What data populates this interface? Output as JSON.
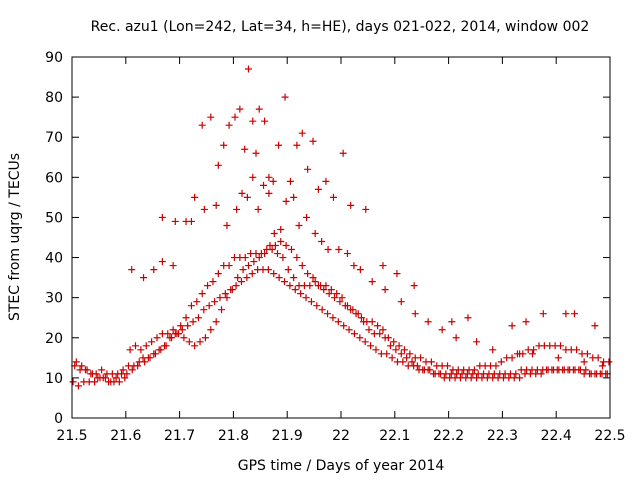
{
  "chart_data": {
    "type": "scatter",
    "title": "Rec. azu1 (Lon=242, Lat=34, h=HE), days 021-022, 2014, window 002",
    "xlabel": "GPS time / Days of year 2014",
    "ylabel": "STEC from uqrg / TECUs",
    "xlim": [
      21.5,
      22.5
    ],
    "ylim": [
      0,
      90
    ],
    "xticks": [
      "21.5",
      "21.6",
      "21.7",
      "21.8",
      "21.9",
      "22",
      "22.1",
      "22.2",
      "22.3",
      "22.4",
      "22.5"
    ],
    "yticks": [
      "0",
      "10",
      "20",
      "30",
      "40",
      "50",
      "60",
      "70",
      "80",
      "90"
    ],
    "grid": false,
    "marker": "plus",
    "color": "#cc0000",
    "x": [
      21.502,
      21.512,
      21.522,
      21.532,
      21.542,
      21.552,
      21.562,
      21.572,
      21.582,
      21.592,
      21.602,
      21.612,
      21.622,
      21.632,
      21.642,
      21.652,
      21.662,
      21.672,
      21.682,
      21.692,
      21.702,
      21.712,
      21.722,
      21.732,
      21.742,
      21.752,
      21.762,
      21.772,
      21.782,
      21.792,
      21.802,
      21.812,
      21.822,
      21.832,
      21.842,
      21.852,
      21.862,
      21.872,
      21.882,
      21.892,
      21.902,
      21.912,
      21.922,
      21.932,
      21.942,
      21.952,
      21.962,
      21.972,
      21.982,
      21.992,
      22.002,
      22.012,
      22.022,
      22.032,
      22.042,
      22.052,
      22.062,
      22.072,
      22.082,
      22.092,
      22.102,
      22.112,
      22.122,
      22.132,
      22.142,
      22.152,
      22.162,
      22.172,
      22.182,
      22.192,
      22.202,
      22.212,
      22.222,
      22.232,
      22.242,
      22.252,
      22.262,
      22.272,
      22.282,
      22.292,
      22.302,
      22.312,
      22.322,
      22.332,
      22.342,
      22.352,
      22.362,
      22.372,
      22.382,
      22.392,
      22.402,
      22.412,
      22.422,
      22.432,
      22.442,
      22.452,
      22.462,
      22.472,
      22.482,
      22.492,
      21.505,
      21.515,
      21.525,
      21.535,
      21.545,
      21.555,
      21.565,
      21.575,
      21.585,
      21.595,
      21.605,
      21.615,
      21.625,
      21.635,
      21.645,
      21.655,
      21.665,
      21.675,
      21.685,
      21.695,
      21.705,
      21.715,
      21.725,
      21.735,
      21.745,
      21.755,
      21.765,
      21.775,
      21.785,
      21.795,
      21.805,
      21.815,
      21.825,
      21.835,
      21.845,
      21.855,
      21.865,
      21.875,
      21.885,
      21.895,
      21.905,
      21.915,
      21.925,
      21.935,
      21.945,
      21.955,
      21.965,
      21.975,
      21.985,
      21.995,
      22.005,
      22.015,
      22.025,
      22.035,
      22.045,
      22.055,
      22.065,
      22.075,
      22.085,
      22.095,
      22.105,
      22.115,
      22.125,
      22.135,
      22.145,
      22.155,
      22.165,
      22.175,
      22.185,
      22.195,
      22.205,
      22.215,
      22.225,
      22.235,
      22.245,
      22.255,
      22.265,
      22.275,
      22.285,
      22.295,
      22.305,
      22.315,
      22.325,
      22.335,
      22.345,
      22.355,
      22.365,
      22.375,
      22.385,
      22.395,
      22.405,
      22.415,
      22.425,
      22.435,
      22.445,
      22.455,
      22.465,
      22.475,
      22.485,
      22.495,
      21.508,
      21.518,
      21.528,
      21.538,
      21.548,
      21.558,
      21.568,
      21.578,
      21.588,
      21.598,
      21.608,
      21.618,
      21.628,
      21.638,
      21.648,
      21.658,
      21.668,
      21.678,
      21.688,
      21.698,
      21.708,
      21.718,
      21.728,
      21.738,
      21.748,
      21.758,
      21.768,
      21.778,
      21.788,
      21.798,
      21.808,
      21.818,
      21.828,
      21.838,
      21.848,
      21.858,
      21.868,
      21.878,
      21.888,
      21.898,
      21.908,
      21.918,
      21.928,
      21.938,
      21.948,
      21.958,
      21.968,
      21.978,
      21.988,
      21.998,
      22.008,
      22.018,
      22.028,
      22.038,
      22.048,
      22.058,
      22.068,
      22.078,
      22.088,
      22.098,
      22.108,
      22.118,
      22.128,
      22.138,
      22.148,
      22.158,
      22.168,
      22.178,
      22.188,
      22.198,
      22.208,
      22.218,
      22.228,
      22.238,
      22.248,
      22.258,
      22.268,
      22.278,
      22.288,
      22.298,
      22.308,
      22.318,
      22.328,
      22.338,
      22.348,
      22.358,
      22.368,
      22.378,
      22.388,
      22.398,
      22.408,
      22.418,
      22.428,
      22.438,
      22.448,
      22.458,
      22.468,
      22.478,
      22.488,
      22.498,
      21.611,
      21.633,
      21.652,
      21.668,
      21.688,
      21.712,
      21.728,
      21.742,
      21.758,
      21.772,
      21.782,
      21.792,
      21.803,
      21.812,
      21.821,
      21.828,
      21.836,
      21.842,
      21.848,
      21.858,
      21.866,
      21.874,
      21.884,
      21.896,
      21.906,
      21.918,
      21.928,
      21.938,
      21.948,
      21.958,
      21.972,
      21.986,
      22.004,
      22.018,
      22.046,
      22.078,
      22.104,
      22.136,
      22.206,
      22.236,
      22.318,
      22.344,
      22.376,
      22.418,
      22.434,
      22.472,
      21.668,
      21.692,
      21.722,
      21.746,
      21.768,
      21.788,
      21.806,
      21.816,
      21.826,
      21.836,
      21.846,
      21.856,
      21.866,
      21.876,
      21.888,
      21.898,
      21.912,
      21.922,
      21.936,
      21.952,
      21.964,
      21.976,
      21.996,
      22.012,
      22.024,
      22.036,
      22.058,
      22.082,
      22.112,
      22.138,
      22.162,
      22.188,
      22.214,
      22.252,
      22.282,
      22.332,
      22.356,
      22.404,
      22.452,
      22.486
    ],
    "y": [
      9,
      8,
      9,
      9,
      9,
      10,
      10,
      9,
      10,
      11,
      11,
      12,
      13,
      15,
      15,
      16,
      17,
      18,
      20,
      21,
      23,
      25,
      28,
      29,
      31,
      33,
      34,
      36,
      38,
      38,
      40,
      40,
      40,
      41,
      41,
      41,
      42,
      42,
      41,
      40,
      37,
      35,
      33,
      33,
      33,
      34,
      33,
      33,
      32,
      31,
      30,
      28,
      27,
      26,
      24,
      22,
      21,
      21,
      20,
      18,
      17,
      16,
      15,
      14,
      13,
      12,
      12,
      11,
      11,
      10,
      10,
      10,
      10,
      10,
      10,
      10,
      10,
      10,
      10,
      10,
      10,
      10,
      10,
      10,
      11,
      11,
      11,
      11,
      12,
      12,
      12,
      12,
      12,
      12,
      12,
      11,
      11,
      11,
      11,
      11,
      13,
      12,
      12,
      11,
      11,
      12,
      11,
      11,
      11,
      12,
      13,
      13,
      14,
      14,
      15,
      16,
      17,
      18,
      20,
      21,
      22,
      23,
      24,
      25,
      27,
      28,
      29,
      30,
      31,
      32,
      33,
      34,
      35,
      36,
      37,
      37,
      37,
      36,
      35,
      34,
      33,
      32,
      31,
      30,
      29,
      28,
      27,
      26,
      25,
      24,
      23,
      22,
      21,
      20,
      19,
      18,
      17,
      16,
      16,
      15,
      14,
      14,
      13,
      13,
      12,
      12,
      12,
      11,
      11,
      11,
      11,
      11,
      11,
      11,
      11,
      11,
      11,
      11,
      11,
      11,
      11,
      11,
      11,
      12,
      12,
      12,
      12,
      12,
      12,
      12,
      12,
      12,
      12,
      12,
      12,
      12,
      11,
      11,
      11,
      11,
      14,
      13,
      12,
      11,
      10,
      10,
      9,
      9,
      9,
      10,
      17,
      18,
      17,
      18,
      19,
      20,
      21,
      21,
      22,
      21,
      20,
      19,
      18,
      19,
      20,
      22,
      24,
      27,
      30,
      32,
      35,
      37,
      38,
      39,
      40,
      41,
      43,
      43,
      44,
      43,
      42,
      40,
      38,
      36,
      35,
      33,
      32,
      31,
      30,
      29,
      28,
      27,
      26,
      25,
      24,
      24,
      23,
      22,
      20,
      19,
      18,
      17,
      16,
      15,
      15,
      14,
      14,
      13,
      13,
      13,
      12,
      12,
      12,
      12,
      12,
      13,
      13,
      13,
      13,
      14,
      15,
      15,
      16,
      16,
      17,
      17,
      18,
      18,
      18,
      18,
      18,
      17,
      17,
      17,
      16,
      16,
      15,
      15,
      14,
      14,
      37,
      35,
      37,
      39,
      38,
      49,
      55,
      73,
      75,
      63,
      68,
      73,
      75,
      77,
      67,
      87,
      74,
      66,
      77,
      74,
      56,
      59,
      68,
      80,
      59,
      68,
      71,
      62,
      69,
      57,
      59,
      55,
      66,
      53,
      52,
      38,
      36,
      33,
      24,
      25,
      23,
      24,
      26,
      26,
      26,
      23,
      50,
      49,
      49,
      52,
      53,
      48,
      52,
      56,
      55,
      60,
      52,
      58,
      60,
      46,
      47,
      54,
      55,
      48,
      50,
      46,
      44,
      42,
      42,
      41,
      38,
      37,
      34,
      32,
      29,
      26,
      24,
      22,
      20,
      19,
      17,
      16,
      16,
      15,
      14,
      13
    ]
  }
}
